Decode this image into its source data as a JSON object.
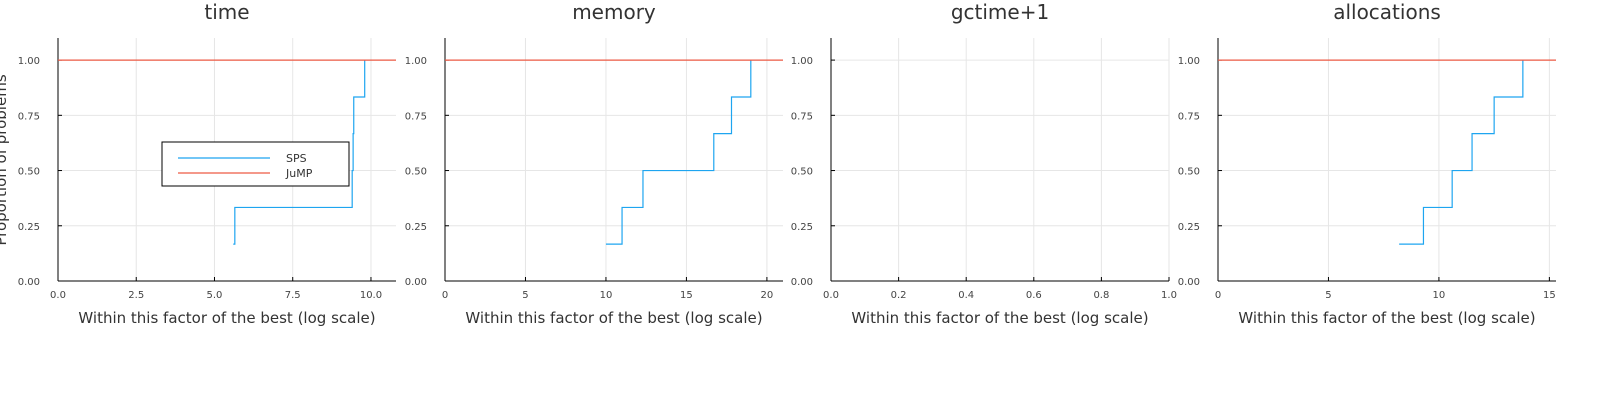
{
  "colors": {
    "SPS": "#1ea5f0",
    "JuMP": "#ee5a44",
    "grid": "#e6e6e6",
    "axis": "#000000"
  },
  "ylabel": "Proportion of problems",
  "legend": {
    "entries": [
      "SPS",
      "JuMP"
    ],
    "placement": "center-left (first panel)"
  },
  "chart_data": [
    {
      "type": "line",
      "title": "time",
      "xlabel": "Within this factor of the best (log scale)",
      "ylabel": "Proportion of problems",
      "xlim": [
        0,
        10.8
      ],
      "ylim": [
        0,
        1.1
      ],
      "xticks": [
        0,
        2.5,
        5,
        7.5,
        10
      ],
      "xtick_labels": [
        "0.0",
        "2.5",
        "5.0",
        "7.5",
        "10.0"
      ],
      "yticks": [
        0,
        0.25,
        0.5,
        0.75,
        1
      ],
      "ytick_labels": [
        "0.00",
        "0.25",
        "0.50",
        "0.75",
        "1.00"
      ],
      "grid": true,
      "legend": true,
      "series": [
        {
          "name": "SPS",
          "color": "#1ea5f0",
          "step": true,
          "x": [
            5.6,
            5.65,
            5.65,
            9.4,
            9.43,
            9.45,
            9.8,
            9.8
          ],
          "y": [
            0.167,
            0.167,
            0.333,
            0.5,
            0.667,
            0.833,
            0.833,
            1.0
          ]
        },
        {
          "name": "JuMP",
          "color": "#ee5a44",
          "step": false,
          "x": [
            0,
            10.8
          ],
          "y": [
            1.0,
            1.0
          ]
        }
      ]
    },
    {
      "type": "line",
      "title": "memory",
      "xlabel": "Within this factor of the best (log scale)",
      "xlim": [
        0,
        21
      ],
      "ylim": [
        0,
        1.1
      ],
      "xticks": [
        0,
        5,
        10,
        15,
        20
      ],
      "xtick_labels": [
        "0",
        "5",
        "10",
        "15",
        "20"
      ],
      "yticks": [
        0,
        0.25,
        0.5,
        0.75,
        1
      ],
      "ytick_labels": [
        "0.00",
        "0.25",
        "0.50",
        "0.75",
        "1.00"
      ],
      "grid": true,
      "legend": false,
      "series": [
        {
          "name": "SPS",
          "color": "#1ea5f0",
          "step": true,
          "x": [
            10,
            11,
            12.3,
            16.7,
            17.8,
            19
          ],
          "y": [
            0.167,
            0.333,
            0.5,
            0.667,
            0.833,
            1.0
          ]
        },
        {
          "name": "JuMP",
          "color": "#ee5a44",
          "step": false,
          "x": [
            0,
            21
          ],
          "y": [
            1.0,
            1.0
          ]
        }
      ]
    },
    {
      "type": "line",
      "title": "gctime+1",
      "xlabel": "Within this factor of the best (log scale)",
      "xlim": [
        0,
        1
      ],
      "ylim": [
        0,
        1.1
      ],
      "xticks": [
        0,
        0.2,
        0.4,
        0.6,
        0.8,
        1.0
      ],
      "xtick_labels": [
        "0.0",
        "0.2",
        "0.4",
        "0.6",
        "0.8",
        "1.0"
      ],
      "yticks": [
        0,
        0.25,
        0.5,
        0.75,
        1
      ],
      "ytick_labels": [
        "0.00",
        "0.25",
        "0.50",
        "0.75",
        "1.00"
      ],
      "grid": true,
      "legend": false,
      "series": []
    },
    {
      "type": "line",
      "title": "allocations",
      "xlabel": "Within this factor of the best (log scale)",
      "xlim": [
        0,
        15.3
      ],
      "ylim": [
        0,
        1.1
      ],
      "xticks": [
        0,
        5,
        10,
        15
      ],
      "xtick_labels": [
        "0",
        "5",
        "10",
        "15"
      ],
      "yticks": [
        0,
        0.25,
        0.5,
        0.75,
        1
      ],
      "ytick_labels": [
        "0.00",
        "0.25",
        "0.50",
        "0.75",
        "1.00"
      ],
      "grid": true,
      "legend": false,
      "series": [
        {
          "name": "SPS",
          "color": "#1ea5f0",
          "step": true,
          "x": [
            8.2,
            9.3,
            10.6,
            11.5,
            12.5,
            13.8
          ],
          "y": [
            0.167,
            0.333,
            0.5,
            0.667,
            0.833,
            1.0
          ]
        },
        {
          "name": "JuMP",
          "color": "#ee5a44",
          "step": false,
          "x": [
            0,
            15.3
          ],
          "y": [
            1.0,
            1.0
          ]
        }
      ]
    }
  ]
}
